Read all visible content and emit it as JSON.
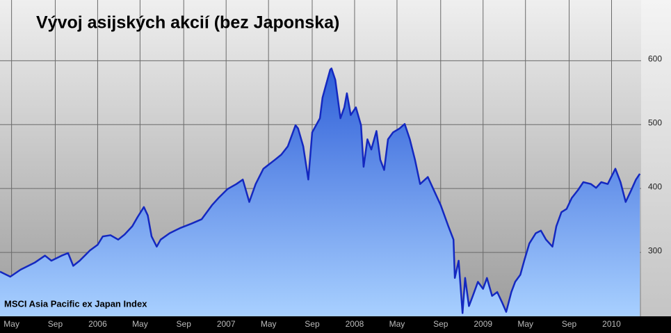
{
  "chart_data": {
    "type": "area",
    "title": "Vývoj asijských akcií (bez Japonska)",
    "annotation": "MSCI Asia Pacific ex Japan Index",
    "line_color": "#1428c0",
    "fill_top_color": "#2f5fd8",
    "fill_bottom_color": "#a8d0ff",
    "grid": true,
    "x": [
      2005.24,
      2005.32,
      2005.4,
      2005.51,
      2005.59,
      2005.64,
      2005.72,
      2005.77,
      2005.81,
      2005.86,
      2005.94,
      2006.0,
      2006.04,
      2006.1,
      2006.16,
      2006.21,
      2006.27,
      2006.31,
      2006.36,
      2006.39,
      2006.42,
      2006.46,
      2006.49,
      2006.56,
      2006.64,
      2006.73,
      2006.81,
      2006.89,
      2006.94,
      2007.01,
      2007.08,
      2007.13,
      2007.18,
      2007.23,
      2007.29,
      2007.38,
      2007.43,
      2007.48,
      2007.54,
      2007.56,
      2007.6,
      2007.64,
      2007.67,
      2007.73,
      2007.75,
      2007.78,
      2007.81,
      2007.82,
      2007.85,
      2007.89,
      2007.92,
      2007.94,
      2007.97,
      2008.01,
      2008.05,
      2008.07,
      2008.1,
      2008.13,
      2008.17,
      2008.2,
      2008.23,
      2008.26,
      2008.3,
      2008.35,
      2008.39,
      2008.43,
      2008.47,
      2008.51,
      2008.57,
      2008.62,
      2008.67,
      2008.73,
      2008.77,
      2008.78,
      2008.81,
      2008.84,
      2008.86,
      2008.89,
      2008.92,
      2008.96,
      2009.0,
      2009.03,
      2009.07,
      2009.11,
      2009.15,
      2009.18,
      2009.22,
      2009.25,
      2009.29,
      2009.32,
      2009.36,
      2009.41,
      2009.45,
      2009.49,
      2009.54,
      2009.57,
      2009.61,
      2009.65,
      2009.69,
      2009.74,
      2009.78,
      2009.84,
      2009.88,
      2009.92,
      2009.97,
      2010.03,
      2010.07,
      2010.11,
      2010.15,
      2010.19,
      2010.22
    ],
    "values": [
      270,
      262,
      273,
      284,
      295,
      287,
      295,
      299,
      279,
      287,
      303,
      312,
      325,
      327,
      320,
      328,
      341,
      355,
      371,
      358,
      325,
      309,
      320,
      330,
      338,
      345,
      352,
      374,
      385,
      399,
      407,
      414,
      379,
      407,
      431,
      445,
      453,
      466,
      499,
      494,
      466,
      414,
      488,
      510,
      542,
      564,
      586,
      588,
      570,
      510,
      527,
      549,
      515,
      527,
      499,
      434,
      477,
      461,
      490,
      445,
      429,
      477,
      488,
      494,
      501,
      477,
      445,
      407,
      418,
      396,
      374,
      341,
      320,
      260,
      287,
      205,
      260,
      216,
      232,
      254,
      243,
      260,
      232,
      238,
      221,
      207,
      238,
      254,
      265,
      287,
      314,
      330,
      334,
      320,
      309,
      341,
      363,
      368,
      385,
      398,
      410,
      407,
      401,
      410,
      407,
      431,
      410,
      379,
      396,
      414,
      423
    ],
    "xlim": [
      2005.24,
      2010.23
    ],
    "ylim": [
      200,
      695
    ],
    "xticks": [
      {
        "value": 2005.33,
        "label": "May"
      },
      {
        "value": 2005.67,
        "label": "Sep"
      },
      2006,
      {
        "value": 2006.33,
        "label": "May"
      },
      {
        "value": 2006.67,
        "label": "Sep"
      },
      2007,
      {
        "value": 2007.33,
        "label": "May"
      },
      {
        "value": 2007.67,
        "label": "Sep"
      },
      2008,
      {
        "value": 2008.33,
        "label": "May"
      },
      {
        "value": 2008.67,
        "label": "Sep"
      },
      2009,
      {
        "value": 2009.33,
        "label": "May"
      },
      {
        "value": 2009.67,
        "label": "Sep"
      },
      2010
    ],
    "yticks": [
      300,
      400,
      500,
      600
    ]
  }
}
